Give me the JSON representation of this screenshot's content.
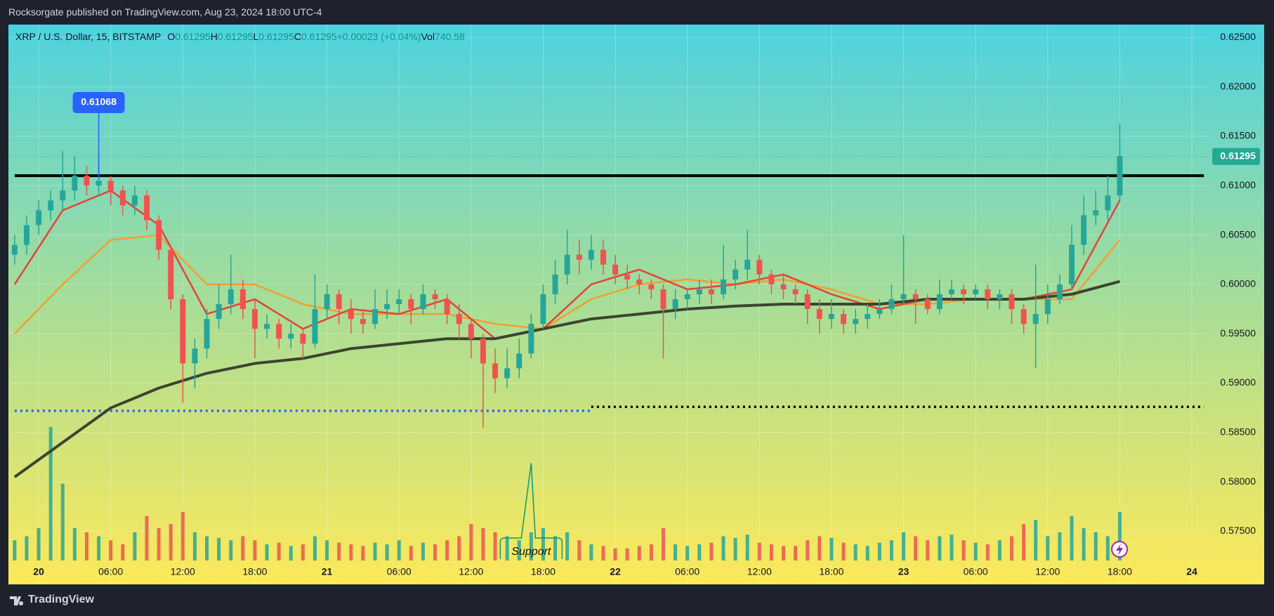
{
  "header": {
    "text": "Rocksorgate published on TradingView.com, Aug 23, 2024 18:00 UTC-4"
  },
  "footer": {
    "brand": "TradingView"
  },
  "chart_data": {
    "type": "candlestick",
    "title": "XRP / U.S. Dollar, 15, BITSTAMP",
    "legend": [
      {
        "key": "O",
        "value": 0.61295
      },
      {
        "key": "H",
        "value": 0.61295
      },
      {
        "key": "L",
        "value": 0.61295
      },
      {
        "key": "C",
        "value": 0.61295
      }
    ],
    "change": "+0.00023 (+0.04%)",
    "volume_label": {
      "key": "Vol",
      "value": 740.58
    },
    "up_color": "#26a69a",
    "down_color": "#ef5350",
    "grid": true,
    "xlim": [
      -2.4,
      97.4
    ],
    "ylim": [
      0.5697,
      0.6263
    ],
    "xticks": [
      {
        "value": 0,
        "label": "20"
      },
      {
        "value": 6,
        "label": "06:00"
      },
      {
        "value": 12,
        "label": "12:00"
      },
      {
        "value": 18,
        "label": "18:00"
      },
      {
        "value": 24,
        "label": "21"
      },
      {
        "value": 30,
        "label": "06:00"
      },
      {
        "value": 36,
        "label": "12:00"
      },
      {
        "value": 42,
        "label": "18:00"
      },
      {
        "value": 48,
        "label": "22"
      },
      {
        "value": 54,
        "label": "06:00"
      },
      {
        "value": 60,
        "label": "12:00"
      },
      {
        "value": 66,
        "label": "18:00"
      },
      {
        "value": 72,
        "label": "23"
      },
      {
        "value": 78,
        "label": "06:00"
      },
      {
        "value": 84,
        "label": "12:00"
      },
      {
        "value": 90,
        "label": "18:00"
      },
      {
        "value": 96,
        "label": "24"
      }
    ],
    "yticks": [
      {
        "value": 0.625,
        "label": "0.62500"
      },
      {
        "value": 0.62,
        "label": "0.62000"
      },
      {
        "value": 0.615,
        "label": "0.61500"
      },
      {
        "value": 0.61,
        "label": "0.61000"
      },
      {
        "value": 0.605,
        "label": "0.60500"
      },
      {
        "value": 0.6,
        "label": "0.60000"
      },
      {
        "value": 0.595,
        "label": "0.59500"
      },
      {
        "value": 0.59,
        "label": "0.59000"
      },
      {
        "value": 0.585,
        "label": "0.58500"
      },
      {
        "value": 0.58,
        "label": "0.58000"
      },
      {
        "value": 0.575,
        "label": "0.57500"
      }
    ],
    "x": [
      -2,
      -1,
      0,
      1,
      2,
      3,
      4,
      5,
      6,
      7,
      8,
      9,
      10,
      11,
      12,
      13,
      14,
      15,
      16,
      17,
      18,
      19,
      20,
      21,
      22,
      23,
      24,
      25,
      26,
      27,
      28,
      29,
      30,
      31,
      32,
      33,
      34,
      35,
      36,
      37,
      38,
      39,
      40,
      41,
      42,
      43,
      44,
      45,
      46,
      47,
      48,
      49,
      50,
      51,
      52,
      53,
      54,
      55,
      56,
      57,
      58,
      59,
      60,
      61,
      62,
      63,
      64,
      65,
      66,
      67,
      68,
      69,
      70,
      71,
      72,
      73,
      74,
      75,
      76,
      77,
      78,
      79,
      80,
      81,
      82,
      83,
      84,
      85,
      86,
      87,
      88,
      89,
      90
    ],
    "ohlc": [
      [
        0.603,
        0.605,
        0.602,
        0.604
      ],
      [
        0.604,
        0.607,
        0.603,
        0.606
      ],
      [
        0.606,
        0.6085,
        0.605,
        0.6075
      ],
      [
        0.6075,
        0.6095,
        0.6065,
        0.6085
      ],
      [
        0.6085,
        0.6135,
        0.6075,
        0.6095
      ],
      [
        0.6095,
        0.613,
        0.6085,
        0.611
      ],
      [
        0.611,
        0.612,
        0.609,
        0.61
      ],
      [
        0.61,
        0.6135,
        0.609,
        0.6105
      ],
      [
        0.6105,
        0.611,
        0.608,
        0.6095
      ],
      [
        0.6095,
        0.61,
        0.607,
        0.608
      ],
      [
        0.608,
        0.61,
        0.607,
        0.609
      ],
      [
        0.609,
        0.6095,
        0.6055,
        0.6065
      ],
      [
        0.6065,
        0.607,
        0.6025,
        0.6035
      ],
      [
        0.6035,
        0.604,
        0.5975,
        0.5985
      ],
      [
        0.5985,
        0.599,
        0.588,
        0.592
      ],
      [
        0.592,
        0.5945,
        0.5895,
        0.5935
      ],
      [
        0.5935,
        0.5975,
        0.5925,
        0.5965
      ],
      [
        0.5965,
        0.6,
        0.5955,
        0.598
      ],
      [
        0.598,
        0.603,
        0.597,
        0.5995
      ],
      [
        0.5995,
        0.6005,
        0.5965,
        0.5975
      ],
      [
        0.5975,
        0.5985,
        0.5925,
        0.5955
      ],
      [
        0.5955,
        0.597,
        0.5945,
        0.596
      ],
      [
        0.596,
        0.5965,
        0.5935,
        0.5945
      ],
      [
        0.5945,
        0.596,
        0.5935,
        0.595
      ],
      [
        0.595,
        0.5955,
        0.5925,
        0.594
      ],
      [
        0.594,
        0.601,
        0.5935,
        0.5975
      ],
      [
        0.5975,
        0.6,
        0.5965,
        0.599
      ],
      [
        0.599,
        0.5995,
        0.596,
        0.5975
      ],
      [
        0.5975,
        0.5985,
        0.595,
        0.5965
      ],
      [
        0.5965,
        0.5975,
        0.595,
        0.596
      ],
      [
        0.596,
        0.5995,
        0.5955,
        0.5975
      ],
      [
        0.5975,
        0.5995,
        0.5965,
        0.598
      ],
      [
        0.598,
        0.5995,
        0.597,
        0.5985
      ],
      [
        0.5985,
        0.599,
        0.596,
        0.5975
      ],
      [
        0.5975,
        0.6,
        0.597,
        0.599
      ],
      [
        0.599,
        0.5995,
        0.5975,
        0.5985
      ],
      [
        0.5985,
        0.599,
        0.596,
        0.597
      ],
      [
        0.597,
        0.598,
        0.5945,
        0.596
      ],
      [
        0.596,
        0.5965,
        0.5925,
        0.5945
      ],
      [
        0.5945,
        0.595,
        0.5855,
        0.592
      ],
      [
        0.592,
        0.5935,
        0.589,
        0.5905
      ],
      [
        0.5905,
        0.5935,
        0.5895,
        0.5915
      ],
      [
        0.5915,
        0.5945,
        0.5905,
        0.593
      ],
      [
        0.593,
        0.597,
        0.5925,
        0.596
      ],
      [
        0.596,
        0.6,
        0.5955,
        0.599
      ],
      [
        0.599,
        0.6025,
        0.598,
        0.601
      ],
      [
        0.601,
        0.6055,
        0.6,
        0.603
      ],
      [
        0.603,
        0.6045,
        0.601,
        0.6025
      ],
      [
        0.6025,
        0.605,
        0.6015,
        0.6035
      ],
      [
        0.6035,
        0.6045,
        0.601,
        0.602
      ],
      [
        0.602,
        0.603,
        0.6,
        0.601
      ],
      [
        0.601,
        0.602,
        0.5995,
        0.6005
      ],
      [
        0.6005,
        0.601,
        0.599,
        0.6
      ],
      [
        0.6,
        0.6005,
        0.5985,
        0.5995
      ],
      [
        0.5995,
        0.6,
        0.5925,
        0.5975
      ],
      [
        0.5975,
        0.5995,
        0.5965,
        0.5985
      ],
      [
        0.5985,
        0.5995,
        0.5975,
        0.599
      ],
      [
        0.599,
        0.6005,
        0.598,
        0.5995
      ],
      [
        0.5995,
        0.6005,
        0.598,
        0.599
      ],
      [
        0.599,
        0.604,
        0.5985,
        0.6005
      ],
      [
        0.6005,
        0.6025,
        0.5995,
        0.6015
      ],
      [
        0.6015,
        0.6055,
        0.6005,
        0.6025
      ],
      [
        0.6025,
        0.603,
        0.6,
        0.601
      ],
      [
        0.601,
        0.6015,
        0.599,
        0.6
      ],
      [
        0.6,
        0.601,
        0.5985,
        0.5995
      ],
      [
        0.5995,
        0.6,
        0.598,
        0.599
      ],
      [
        0.599,
        0.5995,
        0.596,
        0.5975
      ],
      [
        0.5975,
        0.5985,
        0.595,
        0.5965
      ],
      [
        0.5965,
        0.5985,
        0.5955,
        0.597
      ],
      [
        0.597,
        0.5975,
        0.595,
        0.596
      ],
      [
        0.596,
        0.5975,
        0.595,
        0.5965
      ],
      [
        0.5965,
        0.598,
        0.5955,
        0.597
      ],
      [
        0.597,
        0.5985,
        0.5965,
        0.5975
      ],
      [
        0.5975,
        0.6,
        0.597,
        0.5985
      ],
      [
        0.5985,
        0.605,
        0.598,
        0.599
      ],
      [
        0.599,
        0.5995,
        0.596,
        0.5985
      ],
      [
        0.5985,
        0.599,
        0.597,
        0.5975
      ],
      [
        0.5975,
        0.6005,
        0.597,
        0.599
      ],
      [
        0.599,
        0.6005,
        0.5985,
        0.5995
      ],
      [
        0.5995,
        0.6,
        0.598,
        0.599
      ],
      [
        0.599,
        0.6,
        0.5985,
        0.5995
      ],
      [
        0.5995,
        0.6,
        0.5975,
        0.5985
      ],
      [
        0.5985,
        0.5995,
        0.5975,
        0.599
      ],
      [
        0.599,
        0.5995,
        0.596,
        0.5975
      ],
      [
        0.5975,
        0.598,
        0.595,
        0.596
      ],
      [
        0.596,
        0.602,
        0.5915,
        0.597
      ],
      [
        0.597,
        0.6,
        0.596,
        0.5985
      ],
      [
        0.5985,
        0.601,
        0.598,
        0.6
      ],
      [
        0.6,
        0.606,
        0.5995,
        0.604
      ],
      [
        0.604,
        0.609,
        0.603,
        0.607
      ],
      [
        0.607,
        0.6095,
        0.606,
        0.6075
      ],
      [
        0.6075,
        0.611,
        0.6065,
        0.609
      ],
      [
        0.609,
        0.6163,
        0.6085,
        0.613
      ]
    ],
    "volumes": [
      25,
      30,
      40,
      165,
      95,
      40,
      35,
      30,
      25,
      20,
      35,
      55,
      40,
      45,
      60,
      35,
      30,
      28,
      25,
      30,
      25,
      20,
      22,
      18,
      20,
      30,
      25,
      22,
      20,
      18,
      22,
      20,
      25,
      18,
      22,
      20,
      25,
      30,
      45,
      40,
      35,
      30,
      25,
      35,
      40,
      30,
      35,
      25,
      20,
      18,
      15,
      15,
      18,
      20,
      40,
      20,
      18,
      20,
      22,
      30,
      28,
      32,
      22,
      20,
      18,
      18,
      25,
      30,
      28,
      22,
      20,
      18,
      22,
      25,
      35,
      30,
      25,
      30,
      32,
      25,
      22,
      20,
      25,
      30,
      45,
      50,
      30,
      35,
      55,
      40,
      35,
      30,
      60
    ],
    "series": [
      {
        "color": "#f0a030",
        "x": [
          -2,
          2,
          6,
          10,
          14,
          18,
          22,
          26,
          30,
          34,
          38,
          42,
          46,
          50,
          54,
          58,
          62,
          66,
          70,
          74,
          78,
          82,
          86,
          90
        ],
        "values": [
          0.595,
          0.6,
          0.6045,
          0.605,
          0.6,
          0.6,
          0.598,
          0.597,
          0.597,
          0.597,
          0.596,
          0.5955,
          0.5985,
          0.6,
          0.6005,
          0.6,
          0.6005,
          0.5995,
          0.598,
          0.598,
          0.5985,
          0.5985,
          0.5985,
          0.6045
        ]
      },
      {
        "color": "#e0453a",
        "x": [
          -2,
          2,
          6,
          10,
          14,
          18,
          22,
          26,
          30,
          34,
          38,
          42,
          46,
          50,
          54,
          58,
          62,
          66,
          70,
          74,
          78,
          82,
          86,
          90
        ],
        "values": [
          0.6,
          0.6075,
          0.6095,
          0.606,
          0.597,
          0.5985,
          0.5955,
          0.5975,
          0.597,
          0.5985,
          0.5945,
          0.5955,
          0.6,
          0.6015,
          0.5995,
          0.6,
          0.601,
          0.599,
          0.5975,
          0.5985,
          0.5985,
          0.5985,
          0.5995,
          0.6085
        ]
      },
      {
        "color": "#3b4530",
        "x": [
          -2,
          2,
          6,
          10,
          14,
          18,
          22,
          26,
          30,
          34,
          38,
          42,
          46,
          50,
          54,
          58,
          62,
          66,
          70,
          74,
          78,
          82,
          86,
          90
        ],
        "values": [
          0.5805,
          0.584,
          0.5875,
          0.5895,
          0.591,
          0.592,
          0.5925,
          0.5935,
          0.594,
          0.5945,
          0.5945,
          0.5955,
          0.5965,
          0.597,
          0.5975,
          0.5978,
          0.598,
          0.598,
          0.598,
          0.5985,
          0.5985,
          0.5985,
          0.599,
          0.6003
        ]
      }
    ],
    "levels": [
      {
        "value": 0.611,
        "x": [
          -2,
          97
        ],
        "color": "#000000",
        "style": "solid"
      },
      {
        "value": 0.5872,
        "x": [
          -2,
          46
        ],
        "color": "#2962ff",
        "style": "dotted"
      },
      {
        "value": 0.5876,
        "x": [
          46,
          97
        ],
        "color": "#000000",
        "style": "dotted"
      }
    ],
    "last_price": {
      "value": 0.61295,
      "label": "0.61295",
      "color": "#22ab94"
    },
    "high_label": {
      "value": 0.61068,
      "label": "0.61068",
      "x": 5,
      "color": "#2962ff"
    },
    "annotation": {
      "text": "Support",
      "x": 41,
      "value": 0.5819,
      "color": "#089981"
    }
  }
}
